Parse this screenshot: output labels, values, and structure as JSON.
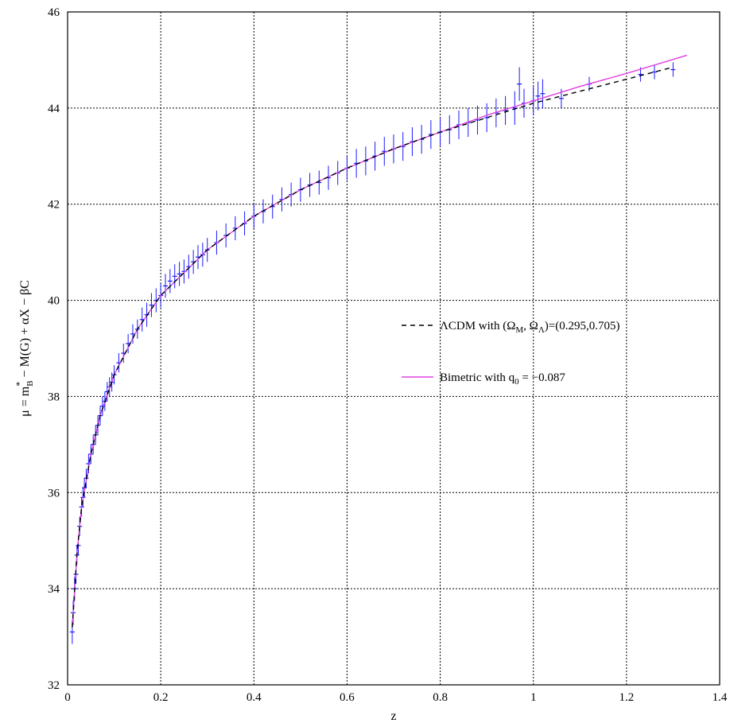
{
  "chart_data": {
    "type": "scatter",
    "title": "",
    "xlabel": "z",
    "ylabel_parts": {
      "base": "μ = m",
      "star": "*",
      "sub_b": "B",
      "rest": " − M(G) + αX − βC"
    },
    "xlim": [
      0,
      1.4
    ],
    "ylim": [
      32,
      46
    ],
    "x_ticks": [
      "0",
      "0.2",
      "0.4",
      "0.6",
      "0.8",
      "1",
      "1.2",
      "1.4"
    ],
    "y_ticks": [
      "32",
      "34",
      "36",
      "38",
      "40",
      "42",
      "44",
      "46"
    ],
    "grid": true,
    "legend_position": "center-right",
    "colors": {
      "data": "#1a1aff",
      "bimetric": "#e040e0",
      "lcdm": "#000000",
      "grid": "#000000"
    },
    "series": [
      {
        "name": "ΛCDM with (Ω_M, Ω_Λ)=(0.295,0.705)",
        "legend_parts": {
          "a": "ΛCDM with (Ω",
          "sub1": "M",
          "b": ", Ω",
          "sub2": "Λ",
          "c": ")=(0.295,0.705)"
        },
        "style": "dashed",
        "x": [
          0.01,
          0.02,
          0.03,
          0.05,
          0.07,
          0.1,
          0.15,
          0.2,
          0.3,
          0.4,
          0.5,
          0.6,
          0.7,
          0.8,
          0.9,
          1.0,
          1.1,
          1.2,
          1.3
        ],
        "y": [
          33.2,
          34.7,
          35.7,
          36.8,
          37.6,
          38.45,
          39.4,
          40.1,
          41.05,
          41.75,
          42.3,
          42.75,
          43.15,
          43.5,
          43.8,
          44.1,
          44.35,
          44.6,
          44.85
        ]
      },
      {
        "name": "Bimetric with q0 = −0.087",
        "legend_parts": {
          "a": "Bimetric with q",
          "sub1": "0",
          "b": " = −0.087"
        },
        "style": "solid",
        "x": [
          0.01,
          0.02,
          0.03,
          0.05,
          0.07,
          0.1,
          0.15,
          0.2,
          0.3,
          0.4,
          0.5,
          0.6,
          0.7,
          0.8,
          0.9,
          1.0,
          1.1,
          1.2,
          1.33
        ],
        "y": [
          33.2,
          34.7,
          35.7,
          36.8,
          37.6,
          38.45,
          39.4,
          40.1,
          41.05,
          41.75,
          42.3,
          42.75,
          43.15,
          43.5,
          43.85,
          44.15,
          44.45,
          44.72,
          45.1
        ]
      },
      {
        "name": "data",
        "style": "errorbar",
        "points": [
          [
            0.01,
            33.1,
            0.25
          ],
          [
            0.012,
            33.5,
            0.25
          ],
          [
            0.015,
            34.0,
            0.25
          ],
          [
            0.018,
            34.3,
            0.2
          ],
          [
            0.02,
            34.7,
            0.2
          ],
          [
            0.023,
            34.9,
            0.2
          ],
          [
            0.026,
            35.3,
            0.2
          ],
          [
            0.03,
            35.7,
            0.2
          ],
          [
            0.033,
            35.9,
            0.2
          ],
          [
            0.036,
            36.1,
            0.2
          ],
          [
            0.04,
            36.3,
            0.2
          ],
          [
            0.045,
            36.6,
            0.2
          ],
          [
            0.05,
            36.8,
            0.2
          ],
          [
            0.055,
            37.0,
            0.2
          ],
          [
            0.06,
            37.2,
            0.2
          ],
          [
            0.065,
            37.4,
            0.2
          ],
          [
            0.07,
            37.6,
            0.2
          ],
          [
            0.075,
            37.8,
            0.2
          ],
          [
            0.08,
            37.9,
            0.2
          ],
          [
            0.085,
            38.1,
            0.2
          ],
          [
            0.09,
            38.2,
            0.2
          ],
          [
            0.095,
            38.3,
            0.2
          ],
          [
            0.1,
            38.45,
            0.2
          ],
          [
            0.11,
            38.7,
            0.2
          ],
          [
            0.12,
            38.9,
            0.2
          ],
          [
            0.13,
            39.1,
            0.2
          ],
          [
            0.14,
            39.3,
            0.2
          ],
          [
            0.15,
            39.4,
            0.2
          ],
          [
            0.16,
            39.6,
            0.25
          ],
          [
            0.17,
            39.7,
            0.25
          ],
          [
            0.18,
            39.9,
            0.25
          ],
          [
            0.19,
            40.0,
            0.25
          ],
          [
            0.2,
            40.1,
            0.25
          ],
          [
            0.21,
            40.3,
            0.25
          ],
          [
            0.22,
            40.4,
            0.25
          ],
          [
            0.23,
            40.5,
            0.25
          ],
          [
            0.24,
            40.55,
            0.25
          ],
          [
            0.25,
            40.6,
            0.25
          ],
          [
            0.26,
            40.7,
            0.25
          ],
          [
            0.27,
            40.8,
            0.25
          ],
          [
            0.28,
            40.9,
            0.25
          ],
          [
            0.29,
            40.95,
            0.25
          ],
          [
            0.3,
            41.05,
            0.25
          ],
          [
            0.32,
            41.2,
            0.25
          ],
          [
            0.34,
            41.35,
            0.25
          ],
          [
            0.36,
            41.5,
            0.25
          ],
          [
            0.38,
            41.6,
            0.25
          ],
          [
            0.4,
            41.75,
            0.25
          ],
          [
            0.42,
            41.85,
            0.25
          ],
          [
            0.44,
            41.95,
            0.25
          ],
          [
            0.46,
            42.1,
            0.25
          ],
          [
            0.48,
            42.2,
            0.25
          ],
          [
            0.5,
            42.3,
            0.25
          ],
          [
            0.52,
            42.4,
            0.25
          ],
          [
            0.54,
            42.45,
            0.25
          ],
          [
            0.56,
            42.55,
            0.25
          ],
          [
            0.58,
            42.65,
            0.25
          ],
          [
            0.6,
            42.75,
            0.25
          ],
          [
            0.62,
            42.85,
            0.3
          ],
          [
            0.64,
            42.9,
            0.3
          ],
          [
            0.66,
            43.0,
            0.3
          ],
          [
            0.68,
            43.1,
            0.3
          ],
          [
            0.7,
            43.15,
            0.3
          ],
          [
            0.72,
            43.2,
            0.3
          ],
          [
            0.74,
            43.3,
            0.3
          ],
          [
            0.76,
            43.35,
            0.3
          ],
          [
            0.78,
            43.45,
            0.3
          ],
          [
            0.8,
            43.5,
            0.3
          ],
          [
            0.82,
            43.55,
            0.3
          ],
          [
            0.84,
            43.65,
            0.3
          ],
          [
            0.86,
            43.7,
            0.3
          ],
          [
            0.88,
            43.75,
            0.3
          ],
          [
            0.9,
            43.8,
            0.3
          ],
          [
            0.92,
            43.9,
            0.3
          ],
          [
            0.94,
            43.95,
            0.3
          ],
          [
            0.96,
            44.0,
            0.35
          ],
          [
            0.97,
            44.5,
            0.35
          ],
          [
            0.98,
            44.1,
            0.3
          ],
          [
            1.0,
            44.15,
            0.3
          ],
          [
            1.01,
            44.25,
            0.3
          ],
          [
            1.02,
            44.3,
            0.3
          ],
          [
            1.06,
            44.2,
            0.2
          ],
          [
            1.12,
            44.5,
            0.15
          ],
          [
            1.23,
            44.7,
            0.15
          ],
          [
            1.26,
            44.75,
            0.15
          ],
          [
            1.3,
            44.8,
            0.15
          ]
        ]
      }
    ]
  }
}
